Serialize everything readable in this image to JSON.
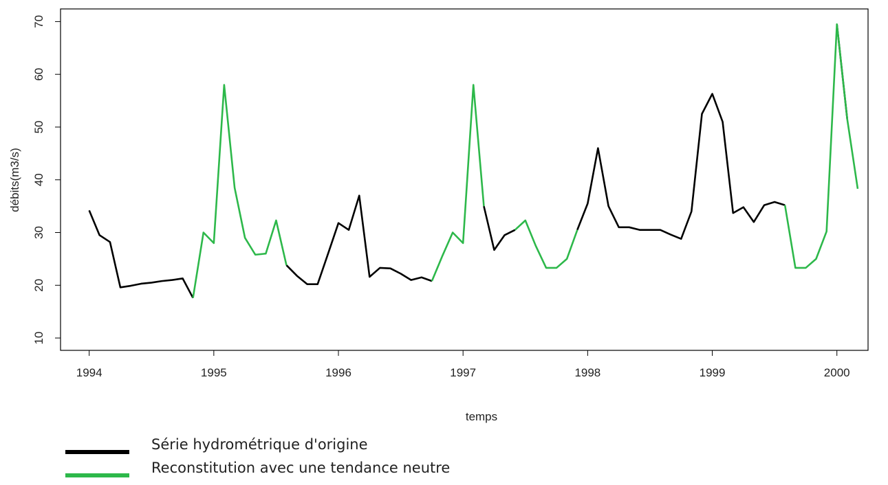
{
  "chart_data": {
    "type": "line",
    "xlabel": "temps",
    "ylabel": "débits(m3/s)",
    "x": [
      1994,
      1994.083,
      1994.167,
      1994.25,
      1994.333,
      1994.417,
      1994.5,
      1994.583,
      1994.667,
      1994.75,
      1994.833,
      1994.917,
      1995,
      1995.083,
      1995.167,
      1995.25,
      1995.333,
      1995.417,
      1995.5,
      1995.583,
      1995.667,
      1995.75,
      1995.833,
      1995.917,
      1996,
      1996.083,
      1996.167,
      1996.25,
      1996.333,
      1996.417,
      1996.5,
      1996.583,
      1996.667,
      1996.75,
      1996.833,
      1996.917,
      1997,
      1997.083,
      1997.167,
      1997.25,
      1997.333,
      1997.417,
      1997.5,
      1997.583,
      1997.667,
      1997.75,
      1997.833,
      1997.917,
      1998,
      1998.083,
      1998.167,
      1998.25,
      1998.333,
      1998.417,
      1998.5,
      1998.583,
      1998.667,
      1998.75,
      1998.833,
      1998.917,
      1999,
      1999.083,
      1999.167,
      1999.25,
      1999.333,
      1999.417,
      1999.5,
      1999.583,
      1999.667,
      1999.75,
      1999.833,
      1999.917,
      2000,
      2000.083,
      2000.167
    ],
    "series": [
      {
        "name": "Série hydrométrique d'origine",
        "color": "#000000",
        "values": [
          34.2,
          29.5,
          28.2,
          19.6,
          19.9,
          20.3,
          20.5,
          20.8,
          21.0,
          21.3,
          17.6,
          null,
          null,
          null,
          null,
          null,
          null,
          null,
          null,
          23.8,
          21.8,
          20.2,
          20.2,
          26,
          31.8,
          30.5,
          37.0,
          21.6,
          23.3,
          23.2,
          22.2,
          21.0,
          21.5,
          20.8,
          null,
          null,
          null,
          null,
          35,
          26.7,
          29.5,
          30.5,
          null,
          null,
          null,
          null,
          null,
          30.5,
          35.5,
          46.0,
          35.0,
          31.0,
          31.0,
          30.5,
          30.5,
          30.5,
          29.6,
          28.8,
          34.0,
          52.5,
          56.3,
          51,
          33.7,
          34.8,
          32.0,
          35.2,
          35.8,
          35.2,
          null,
          null,
          null,
          null,
          69.5,
          51.5,
          null
        ]
      },
      {
        "name": "Reconstitution avec une tendance neutre",
        "color": "#2db84a",
        "values": [
          null,
          null,
          null,
          null,
          null,
          null,
          null,
          null,
          null,
          null,
          17.6,
          30.0,
          28.0,
          58.0,
          38.5,
          29.0,
          25.8,
          26.0,
          32.3,
          23.8,
          null,
          null,
          null,
          null,
          null,
          null,
          null,
          null,
          null,
          null,
          null,
          null,
          null,
          20.8,
          25.5,
          30.0,
          28.0,
          58.0,
          35.0,
          null,
          null,
          30.5,
          32.3,
          27.5,
          23.3,
          23.3,
          25.0,
          30.5,
          null,
          null,
          null,
          null,
          null,
          null,
          null,
          null,
          null,
          null,
          null,
          null,
          null,
          null,
          null,
          null,
          null,
          null,
          null,
          35.2,
          23.3,
          23.3,
          25.0,
          30.2,
          69.5,
          51.5,
          38.3
        ]
      }
    ],
    "xlim": [
      1993.77,
      2000.25
    ],
    "xticks": [
      1994,
      1995,
      1996,
      1997,
      1998,
      1999,
      2000
    ],
    "ylim": [
      7.66,
      72.4
    ],
    "yticks": [
      10,
      20,
      30,
      40,
      50,
      60,
      70
    ],
    "grid": false
  }
}
